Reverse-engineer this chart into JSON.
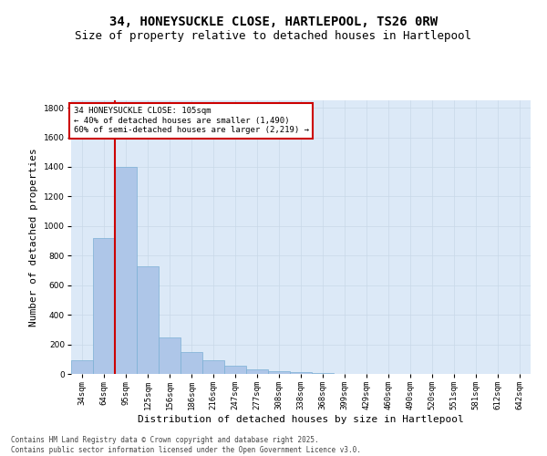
{
  "title": "34, HONEYSUCKLE CLOSE, HARTLEPOOL, TS26 0RW",
  "subtitle": "Size of property relative to detached houses in Hartlepool",
  "xlabel": "Distribution of detached houses by size in Hartlepool",
  "ylabel": "Number of detached properties",
  "categories": [
    "34sqm",
    "64sqm",
    "95sqm",
    "125sqm",
    "156sqm",
    "186sqm",
    "216sqm",
    "247sqm",
    "277sqm",
    "308sqm",
    "338sqm",
    "368sqm",
    "399sqm",
    "429sqm",
    "460sqm",
    "490sqm",
    "520sqm",
    "551sqm",
    "581sqm",
    "612sqm",
    "642sqm"
  ],
  "values": [
    90,
    920,
    1400,
    730,
    245,
    145,
    90,
    55,
    30,
    20,
    10,
    5,
    2,
    1,
    0,
    0,
    0,
    0,
    0,
    0,
    0
  ],
  "bar_color": "#aec6e8",
  "bar_edge_color": "#7bafd4",
  "annotation_text_line1": "34 HONEYSUCKLE CLOSE: 105sqm",
  "annotation_text_line2": "← 40% of detached houses are smaller (1,490)",
  "annotation_text_line3": "60% of semi-detached houses are larger (2,219) →",
  "annotation_box_color": "#ffffff",
  "annotation_box_edge_color": "#cc0000",
  "vline_color": "#cc0000",
  "vline_x_index": 2,
  "ylim": [
    0,
    1850
  ],
  "yticks": [
    0,
    200,
    400,
    600,
    800,
    1000,
    1200,
    1400,
    1600,
    1800
  ],
  "grid_color": "#c8d8e8",
  "background_color": "#dce9f7",
  "footer_line1": "Contains HM Land Registry data © Crown copyright and database right 2025.",
  "footer_line2": "Contains public sector information licensed under the Open Government Licence v3.0.",
  "title_fontsize": 10,
  "subtitle_fontsize": 9,
  "tick_fontsize": 6.5,
  "ylabel_fontsize": 8,
  "xlabel_fontsize": 8,
  "annotation_fontsize": 6.5,
  "footer_fontsize": 5.5
}
